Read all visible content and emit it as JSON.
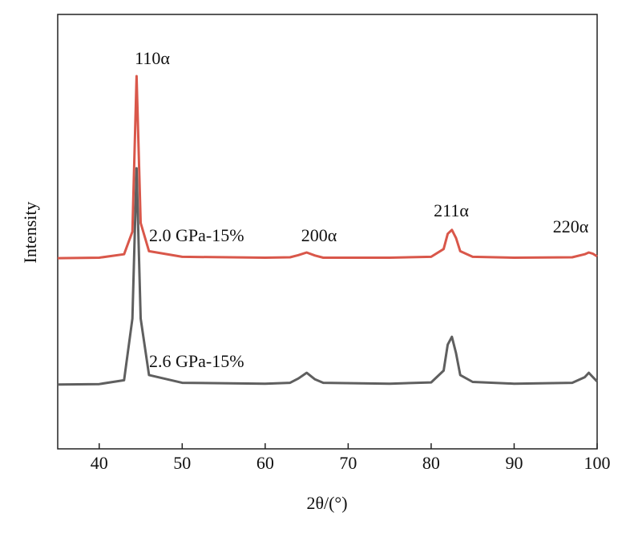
{
  "chart_data": {
    "type": "line",
    "xlabel": "2θ/(°)",
    "ylabel": "Intensity",
    "x": [
      35,
      40,
      43,
      44,
      44.5,
      45,
      46,
      50,
      60,
      63,
      64,
      65,
      66,
      67,
      75,
      80,
      81.5,
      82,
      82.5,
      83,
      83.5,
      85,
      90,
      97,
      98.5,
      99,
      99.5,
      100
    ],
    "series": [
      {
        "name": "2.0 GPa-15%",
        "color": "#d9574a",
        "values": [
          43.9,
          44.0,
          44.8,
          50,
          85.8,
          52,
          45.5,
          44.2,
          44.0,
          44.1,
          44.6,
          45.2,
          44.5,
          44.0,
          44.0,
          44.2,
          46,
          49.5,
          50.4,
          48.5,
          45.5,
          44.2,
          44.0,
          44.1,
          44.8,
          45.2,
          44.9,
          44.3
        ]
      },
      {
        "name": "2.6 GPa-15%",
        "color": "#5f5f5f",
        "values": [
          14.8,
          14.9,
          15.8,
          30,
          64.6,
          30,
          17,
          15.2,
          15.0,
          15.2,
          16.2,
          17.5,
          16,
          15.2,
          15.0,
          15.3,
          18,
          24,
          25.8,
          22,
          17,
          15.4,
          15.0,
          15.2,
          16.5,
          17.5,
          16.5,
          15.5
        ]
      }
    ],
    "annotations": [
      "110α",
      "200α",
      "211α",
      "220α"
    ],
    "xlim": [
      35,
      100
    ],
    "xticks": [
      40,
      50,
      60,
      70,
      80,
      90,
      100
    ],
    "ylim": [
      0,
      100
    ]
  }
}
